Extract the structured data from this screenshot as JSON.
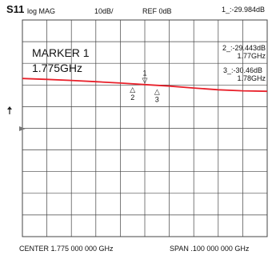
{
  "header": {
    "param": "S11",
    "format": "log MAG",
    "scale": "10dB/",
    "ref": "REF 0dB"
  },
  "markers_panel": {
    "title": "MARKER 1",
    "freq": "1.775GHz"
  },
  "readouts": [
    {
      "label": "1_:-29.984dB",
      "freq": ""
    },
    {
      "label": "2_:-29.443dB",
      "freq": "1.77GHz"
    },
    {
      "label": "3_:-30.46dB",
      "freq": "1.78GHz"
    }
  ],
  "footer": {
    "center": "CENTER 1.775 000 000 GHz",
    "span": "SPAN .100 000 000 GHz"
  },
  "colors": {
    "trace": "#e8202a",
    "grid": "#444444"
  },
  "chart_data": {
    "type": "line",
    "title": "S11 log MAG",
    "xlabel": "",
    "ylabel": "",
    "xlim": [
      1.725,
      1.825
    ],
    "ylim": [
      -100,
      0
    ],
    "x_divisions": 10,
    "y_divisions": 10,
    "grid": true,
    "series": [
      {
        "name": "S11",
        "x": [
          1.725,
          1.735,
          1.745,
          1.755,
          1.765,
          1.775,
          1.785,
          1.795,
          1.805,
          1.815,
          1.825
        ],
        "y": [
          -27.0,
          -27.4,
          -27.9,
          -28.5,
          -29.1,
          -29.8,
          -30.5,
          -31.4,
          -32.2,
          -32.7,
          -32.9
        ]
      }
    ],
    "markers": [
      {
        "id": "1",
        "x": 1.775,
        "y": -29.984,
        "symbol": "▽"
      },
      {
        "id": "2",
        "x": 1.77,
        "y": -29.443,
        "symbol": "△"
      },
      {
        "id": "3",
        "x": 1.78,
        "y": -30.46,
        "symbol": "△"
      }
    ]
  }
}
